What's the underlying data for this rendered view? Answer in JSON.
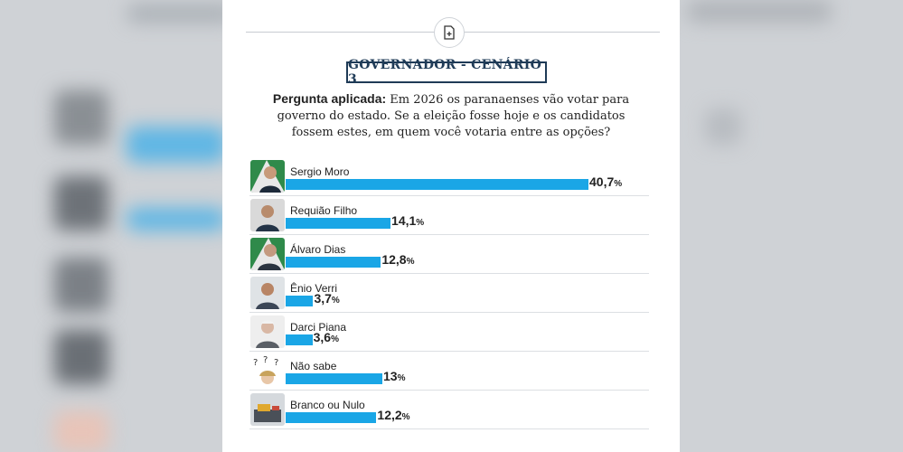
{
  "header": {
    "title": "GOVERNADOR - CENÁRIO 3"
  },
  "question": {
    "label": "Pergunta aplicada:",
    "text": " Em 2026 os paranaenses vão votar para governo do estado. Se a eleição fosse hoje e os candidatos fossem estes, em quem você votaria entre as opções?"
  },
  "icons": [
    "doc-plus-icon"
  ],
  "colors": {
    "bar": "#1aa6e6",
    "title": "#1f3b57"
  },
  "chart_data": {
    "type": "bar",
    "orientation": "horizontal",
    "unit": "%",
    "categories": [
      "Sergio Moro",
      "Requião Filho",
      "Álvaro Dias",
      "Ênio Verri",
      "Darci Piana",
      "Não sabe",
      "Branco ou Nulo"
    ],
    "values": [
      40.7,
      14.1,
      12.8,
      3.7,
      3.6,
      13,
      12.2
    ],
    "labels": [
      "40,7",
      "14,1",
      "12,8",
      "3,7",
      "3,6",
      "13",
      "12,2"
    ],
    "xlim": [
      0,
      45
    ]
  }
}
